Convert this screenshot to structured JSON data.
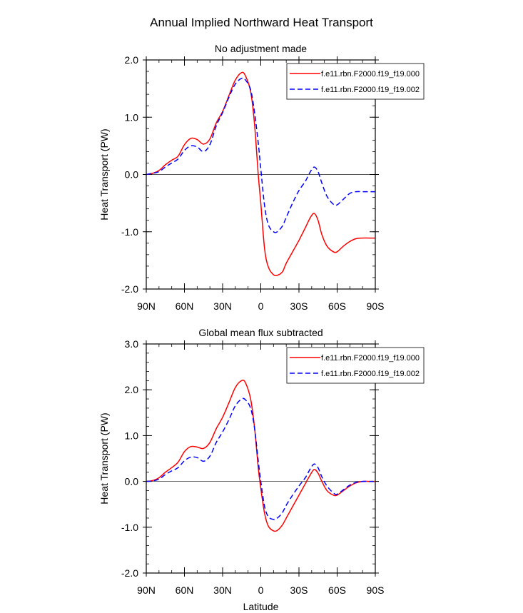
{
  "figure": {
    "title": "Annual Implied Northward Heat Transport"
  },
  "chart_data": [
    {
      "type": "line",
      "title": "No adjustment made",
      "xlabel": "",
      "ylabel": "Heat Transport (PW)",
      "xlim": [
        90,
        -90
      ],
      "ylim": [
        -2.0,
        2.0
      ],
      "x_ticks": [
        90,
        60,
        30,
        0,
        -30,
        -60,
        -90
      ],
      "x_tick_labels": [
        "90N",
        "60N",
        "30N",
        "0",
        "30S",
        "60S",
        "90S"
      ],
      "y_ticks": [
        -2.0,
        -1.0,
        0.0,
        1.0,
        2.0
      ],
      "y_tick_labels": [
        "-2.0",
        "-1.0",
        "0.0",
        "1.0",
        "2.0"
      ],
      "zero_line": true,
      "legend": "top-right",
      "series": [
        {
          "name": "f.e11.rbn.F2000.f19_f19.000",
          "color": "#ff0000",
          "dash": "solid",
          "points": [
            [
              90,
              0.0
            ],
            [
              85,
              0.02
            ],
            [
              80,
              0.07
            ],
            [
              75,
              0.17
            ],
            [
              70,
              0.25
            ],
            [
              65,
              0.32
            ],
            [
              60,
              0.52
            ],
            [
              55,
              0.63
            ],
            [
              50,
              0.61
            ],
            [
              45,
              0.53
            ],
            [
              40,
              0.62
            ],
            [
              35,
              0.9
            ],
            [
              30,
              1.1
            ],
            [
              25,
              1.38
            ],
            [
              20,
              1.65
            ],
            [
              15,
              1.78
            ],
            [
              12,
              1.72
            ],
            [
              8,
              1.45
            ],
            [
              5,
              0.9
            ],
            [
              2,
              0.0
            ],
            [
              0,
              -0.5
            ],
            [
              -3,
              -1.3
            ],
            [
              -6,
              -1.62
            ],
            [
              -10,
              -1.75
            ],
            [
              -13,
              -1.76
            ],
            [
              -17,
              -1.7
            ],
            [
              -20,
              -1.55
            ],
            [
              -25,
              -1.35
            ],
            [
              -30,
              -1.15
            ],
            [
              -35,
              -0.93
            ],
            [
              -39,
              -0.75
            ],
            [
              -42,
              -0.68
            ],
            [
              -45,
              -0.8
            ],
            [
              -48,
              -1.05
            ],
            [
              -52,
              -1.25
            ],
            [
              -57,
              -1.35
            ],
            [
              -60,
              -1.35
            ],
            [
              -65,
              -1.25
            ],
            [
              -70,
              -1.17
            ],
            [
              -75,
              -1.12
            ],
            [
              -80,
              -1.11
            ],
            [
              -85,
              -1.11
            ],
            [
              -90,
              -1.11
            ]
          ]
        },
        {
          "name": "f.e11.rbn.F2000.f19_f19.002",
          "color": "#0000ff",
          "dash": "dashed",
          "points": [
            [
              90,
              0.0
            ],
            [
              85,
              0.02
            ],
            [
              80,
              0.05
            ],
            [
              75,
              0.13
            ],
            [
              70,
              0.2
            ],
            [
              65,
              0.27
            ],
            [
              60,
              0.42
            ],
            [
              55,
              0.5
            ],
            [
              50,
              0.48
            ],
            [
              45,
              0.4
            ],
            [
              40,
              0.52
            ],
            [
              35,
              0.85
            ],
            [
              30,
              1.08
            ],
            [
              25,
              1.35
            ],
            [
              20,
              1.58
            ],
            [
              15,
              1.68
            ],
            [
              12,
              1.65
            ],
            [
              8,
              1.48
            ],
            [
              5,
              1.1
            ],
            [
              2,
              0.55
            ],
            [
              0,
              0.1
            ],
            [
              -3,
              -0.55
            ],
            [
              -6,
              -0.88
            ],
            [
              -10,
              -1.0
            ],
            [
              -13,
              -1.0
            ],
            [
              -17,
              -0.9
            ],
            [
              -20,
              -0.75
            ],
            [
              -25,
              -0.5
            ],
            [
              -30,
              -0.28
            ],
            [
              -35,
              -0.12
            ],
            [
              -39,
              0.05
            ],
            [
              -42,
              0.13
            ],
            [
              -45,
              0.05
            ],
            [
              -48,
              -0.15
            ],
            [
              -52,
              -0.38
            ],
            [
              -57,
              -0.52
            ],
            [
              -60,
              -0.53
            ],
            [
              -65,
              -0.43
            ],
            [
              -70,
              -0.33
            ],
            [
              -75,
              -0.3
            ],
            [
              -80,
              -0.3
            ],
            [
              -85,
              -0.3
            ],
            [
              -90,
              -0.3
            ]
          ]
        }
      ]
    },
    {
      "type": "line",
      "title": "Global mean flux subtracted",
      "xlabel": "Latitude",
      "ylabel": "Heat Transport (PW)",
      "xlim": [
        90,
        -90
      ],
      "ylim": [
        -2.0,
        3.0
      ],
      "x_ticks": [
        90,
        60,
        30,
        0,
        -30,
        -60,
        -90
      ],
      "x_tick_labels": [
        "90N",
        "60N",
        "30N",
        "0",
        "30S",
        "60S",
        "90S"
      ],
      "y_ticks": [
        -2.0,
        -1.0,
        0.0,
        1.0,
        2.0,
        3.0
      ],
      "y_tick_labels": [
        "-2.0",
        "-1.0",
        "0.0",
        "1.0",
        "2.0",
        "3.0"
      ],
      "zero_line": true,
      "legend": "top-right",
      "series": [
        {
          "name": "f.e11.rbn.F2000.f19_f19.000",
          "color": "#ff0000",
          "dash": "solid",
          "points": [
            [
              90,
              0.0
            ],
            [
              85,
              0.02
            ],
            [
              80,
              0.08
            ],
            [
              75,
              0.2
            ],
            [
              70,
              0.3
            ],
            [
              65,
              0.42
            ],
            [
              60,
              0.65
            ],
            [
              55,
              0.76
            ],
            [
              50,
              0.75
            ],
            [
              45,
              0.72
            ],
            [
              40,
              0.85
            ],
            [
              35,
              1.15
            ],
            [
              30,
              1.4
            ],
            [
              25,
              1.72
            ],
            [
              20,
              2.05
            ],
            [
              15,
              2.2
            ],
            [
              12,
              2.15
            ],
            [
              8,
              1.8
            ],
            [
              5,
              1.2
            ],
            [
              2,
              0.3
            ],
            [
              0,
              -0.15
            ],
            [
              -3,
              -0.7
            ],
            [
              -6,
              -0.98
            ],
            [
              -10,
              -1.08
            ],
            [
              -13,
              -1.07
            ],
            [
              -17,
              -0.95
            ],
            [
              -20,
              -0.8
            ],
            [
              -25,
              -0.55
            ],
            [
              -30,
              -0.3
            ],
            [
              -35,
              -0.05
            ],
            [
              -39,
              0.15
            ],
            [
              -42,
              0.26
            ],
            [
              -45,
              0.18
            ],
            [
              -48,
              0.0
            ],
            [
              -52,
              -0.2
            ],
            [
              -57,
              -0.3
            ],
            [
              -60,
              -0.3
            ],
            [
              -65,
              -0.2
            ],
            [
              -70,
              -0.1
            ],
            [
              -75,
              -0.03
            ],
            [
              -80,
              0.0
            ],
            [
              -85,
              0.0
            ],
            [
              -90,
              0.0
            ]
          ]
        },
        {
          "name": "f.e11.rbn.F2000.f19_f19.002",
          "color": "#0000ff",
          "dash": "dashed",
          "points": [
            [
              90,
              0.0
            ],
            [
              85,
              0.01
            ],
            [
              80,
              0.05
            ],
            [
              75,
              0.15
            ],
            [
              70,
              0.23
            ],
            [
              65,
              0.3
            ],
            [
              60,
              0.45
            ],
            [
              55,
              0.53
            ],
            [
              50,
              0.52
            ],
            [
              45,
              0.44
            ],
            [
              40,
              0.55
            ],
            [
              35,
              0.85
            ],
            [
              30,
              1.08
            ],
            [
              25,
              1.35
            ],
            [
              20,
              1.65
            ],
            [
              15,
              1.8
            ],
            [
              12,
              1.78
            ],
            [
              8,
              1.6
            ],
            [
              5,
              1.18
            ],
            [
              2,
              0.45
            ],
            [
              0,
              0.0
            ],
            [
              -3,
              -0.55
            ],
            [
              -6,
              -0.77
            ],
            [
              -10,
              -0.83
            ],
            [
              -13,
              -0.8
            ],
            [
              -17,
              -0.68
            ],
            [
              -20,
              -0.52
            ],
            [
              -25,
              -0.3
            ],
            [
              -30,
              -0.1
            ],
            [
              -35,
              0.08
            ],
            [
              -39,
              0.28
            ],
            [
              -42,
              0.38
            ],
            [
              -45,
              0.3
            ],
            [
              -48,
              0.1
            ],
            [
              -52,
              -0.1
            ],
            [
              -57,
              -0.25
            ],
            [
              -60,
              -0.28
            ],
            [
              -65,
              -0.18
            ],
            [
              -70,
              -0.08
            ],
            [
              -75,
              -0.02
            ],
            [
              -80,
              0.0
            ],
            [
              -85,
              0.0
            ],
            [
              -90,
              0.0
            ]
          ]
        }
      ]
    }
  ]
}
